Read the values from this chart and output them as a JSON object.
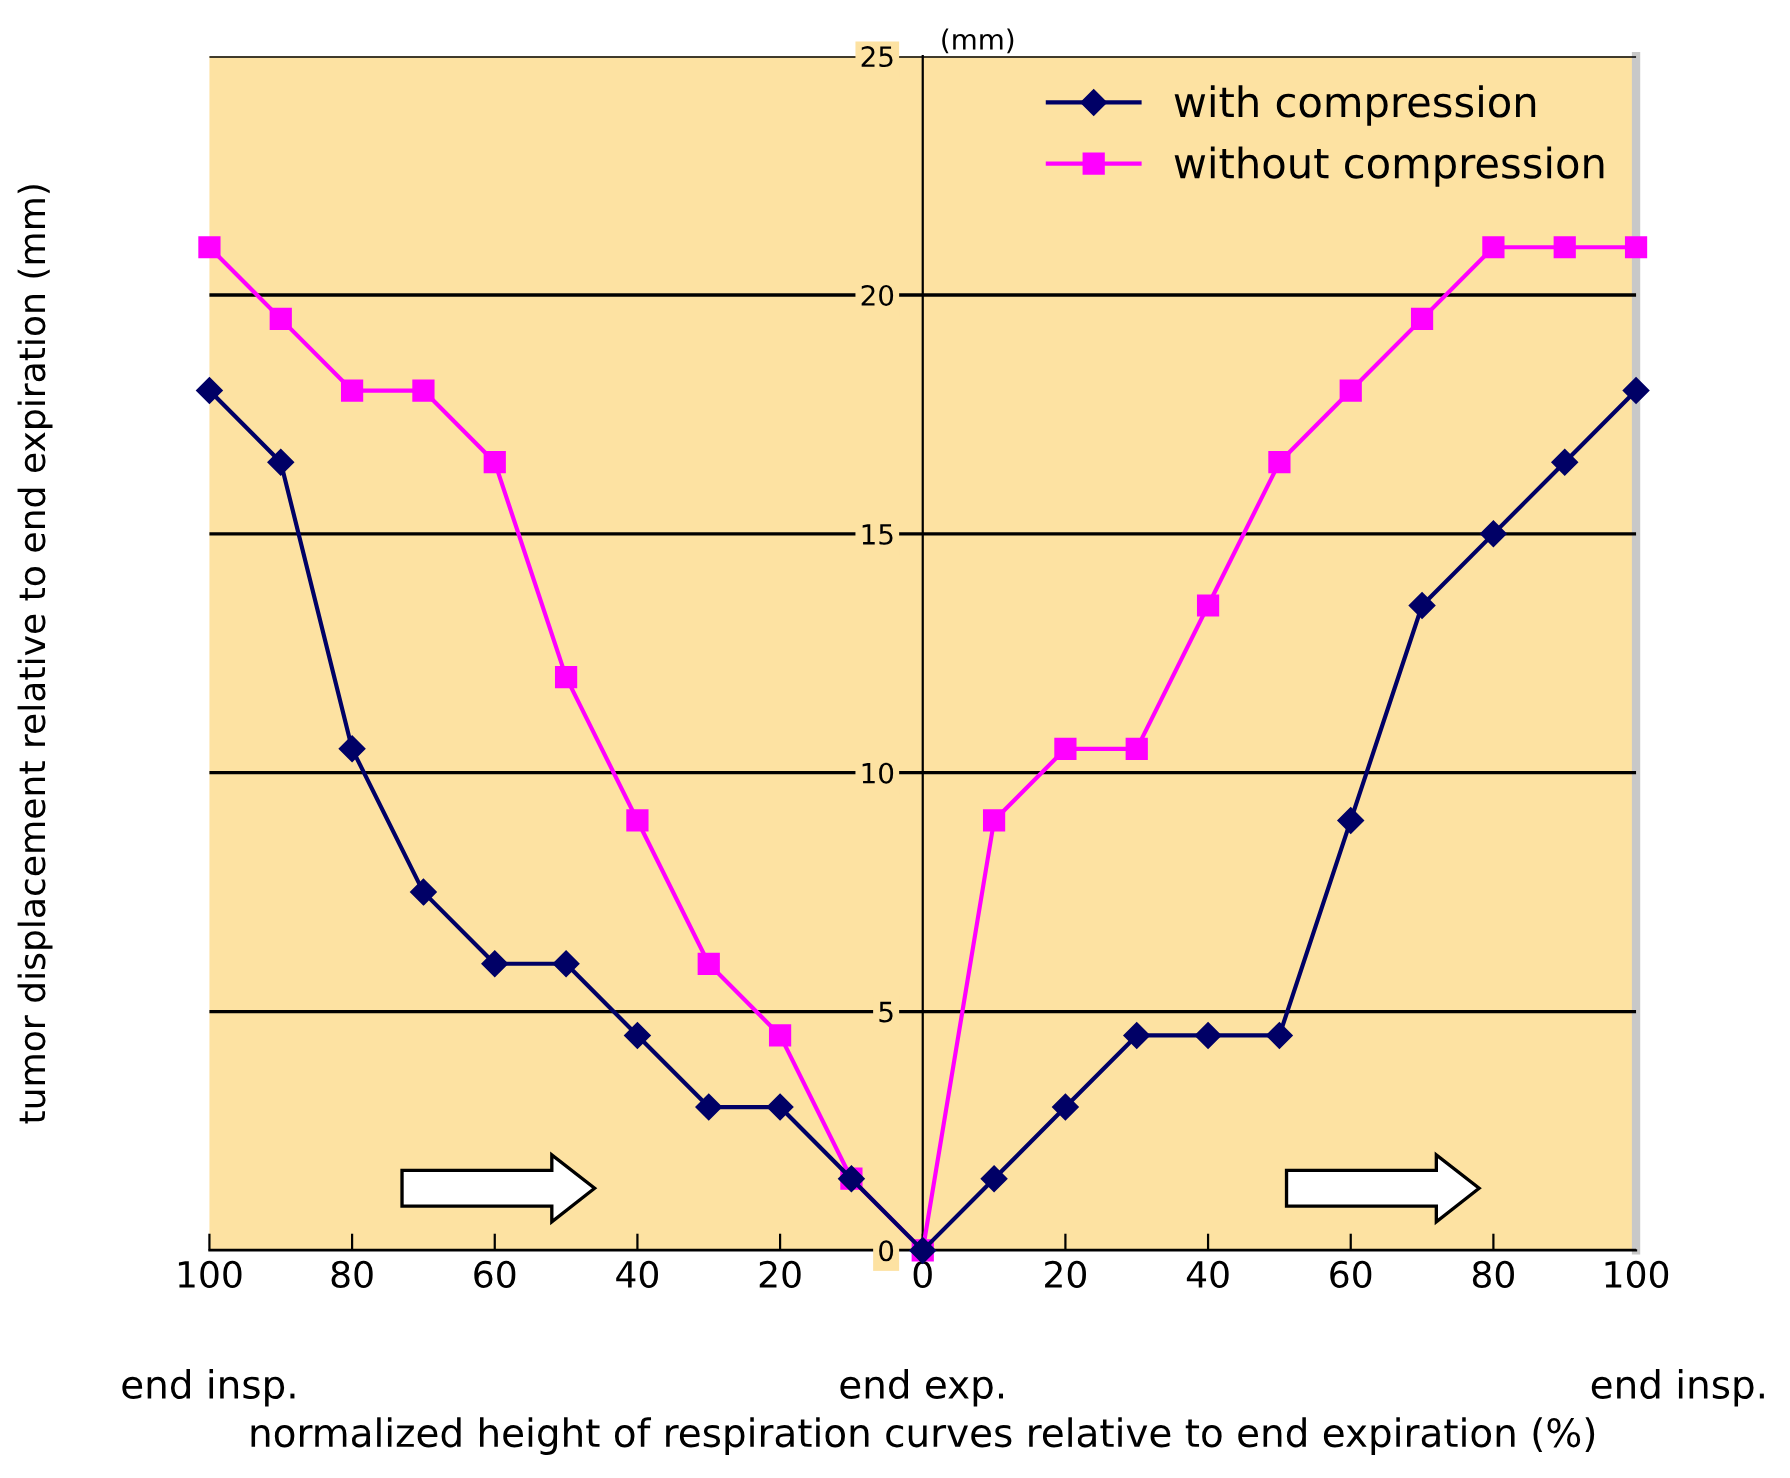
{
  "chart_data": {
    "type": "line",
    "xlabel": "normalized height of respiration curves relative to end expiration (%)",
    "ylabel": "tumor displacement relative to end expiration (mm)",
    "x": [
      -100,
      -90,
      -80,
      -70,
      -60,
      -50,
      -40,
      -30,
      -20,
      -10,
      0,
      10,
      20,
      30,
      40,
      50,
      60,
      70,
      80,
      90,
      100
    ],
    "series": [
      {
        "name": "with compression",
        "color": "#000066",
        "marker": "diamond",
        "values": [
          18,
          16.5,
          10.5,
          7.5,
          6,
          6,
          4.5,
          3,
          3,
          1.5,
          0,
          1.5,
          3,
          4.5,
          4.5,
          4.5,
          9,
          13.5,
          15,
          16.5,
          18
        ]
      },
      {
        "name": "without compression",
        "color": "#ff00ff",
        "marker": "square",
        "values": [
          21,
          19.5,
          18,
          18,
          16.5,
          12,
          9,
          6,
          4.5,
          1.5,
          0,
          9,
          10.5,
          10.5,
          13.5,
          16.5,
          18,
          19.5,
          21,
          21,
          21
        ]
      }
    ],
    "xlim": [
      -100,
      100
    ],
    "ylim": [
      0,
      25
    ],
    "xticks": [
      {
        "value": -100,
        "label": "100"
      },
      {
        "value": -80,
        "label": "80"
      },
      {
        "value": -60,
        "label": "60"
      },
      {
        "value": -40,
        "label": "40"
      },
      {
        "value": -20,
        "label": "20"
      },
      0,
      20,
      40,
      60,
      80,
      100
    ],
    "yticks": [
      0,
      5,
      10,
      15,
      20,
      25
    ],
    "grid": "y",
    "legend": "top right",
    "line_style": "solid",
    "annotations": [
      "end insp.",
      "end exp.",
      "end insp.",
      "(mm)"
    ]
  }
}
